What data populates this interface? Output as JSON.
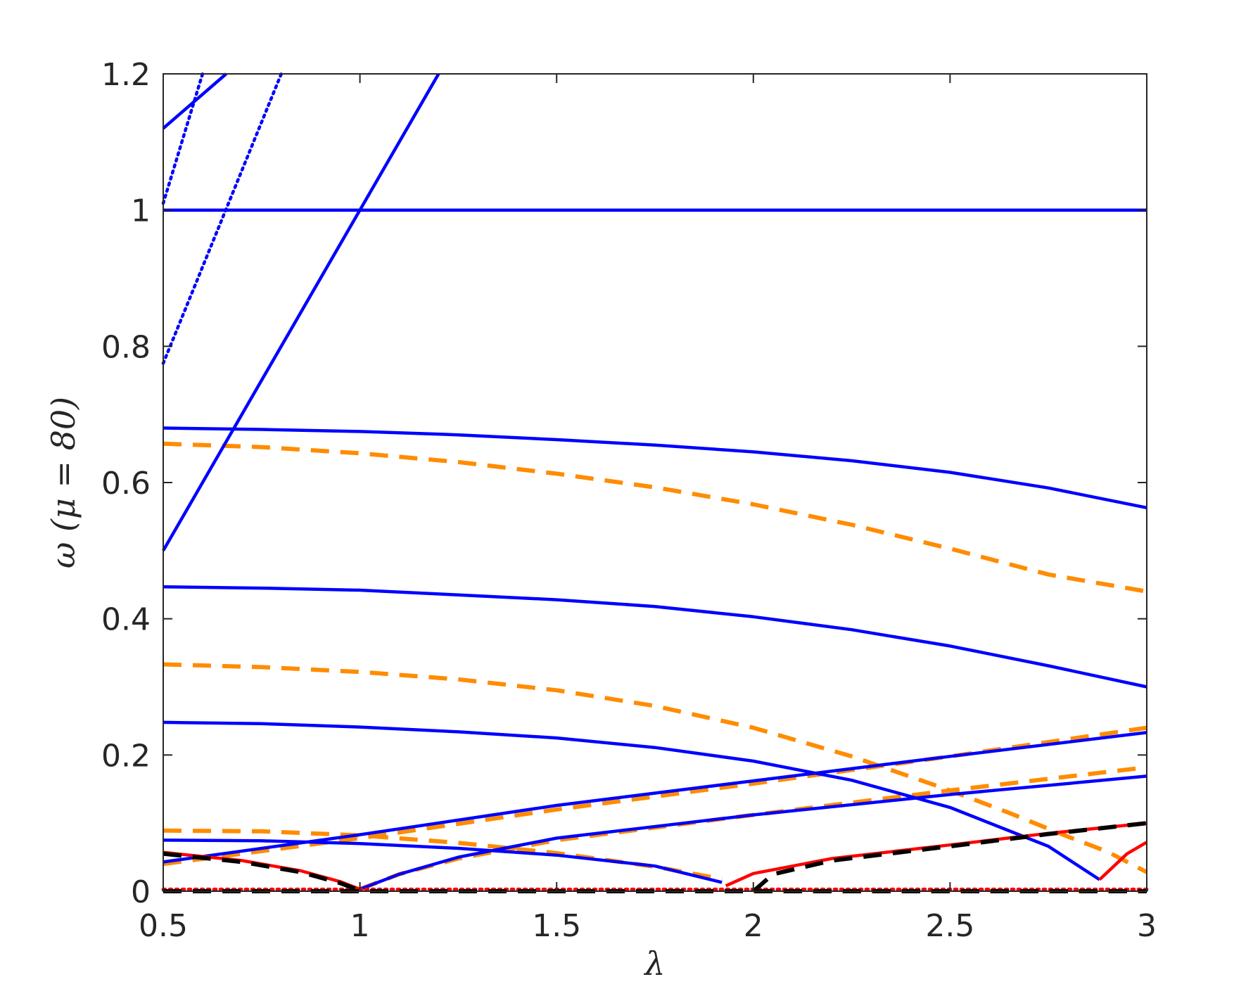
{
  "chart_data": {
    "type": "line",
    "title": "",
    "xlabel": "λ",
    "ylabel": "ω (μ = 80)",
    "xlim": [
      0.5,
      3
    ],
    "ylim": [
      0,
      1.2
    ],
    "xticks": [
      "0.5",
      "1",
      "1.5",
      "2",
      "2.5",
      "3"
    ],
    "yticks": [
      "0",
      "0.2",
      "0.4",
      "0.6",
      "0.8",
      "1",
      "1.2"
    ],
    "grid": false,
    "legend": "none",
    "colors": {
      "blue": "#0000ff",
      "orange": "#ff8c00",
      "red": "#ff0000",
      "black": "#000000",
      "axis": "#262626"
    },
    "series": [
      {
        "color": "blue",
        "style": "solid",
        "x": [
          0.5,
          1.0,
          1.5,
          2.0,
          2.5,
          3.0
        ],
        "y": [
          1.0,
          1.0,
          1.0,
          1.0,
          1.0,
          1.0
        ]
      },
      {
        "color": "blue",
        "style": "solid",
        "x": [
          0.5,
          0.75,
          1.0,
          1.25,
          1.5,
          1.75,
          2.0,
          2.25,
          2.5,
          2.75,
          3.0
        ],
        "y": [
          0.68,
          0.678,
          0.675,
          0.67,
          0.663,
          0.655,
          0.645,
          0.632,
          0.615,
          0.592,
          0.563
        ]
      },
      {
        "color": "blue",
        "style": "solid",
        "x": [
          0.5,
          0.75,
          1.0,
          1.25,
          1.5,
          1.75,
          2.0,
          2.25,
          2.5,
          2.75,
          3.0
        ],
        "y": [
          0.447,
          0.445,
          0.442,
          0.435,
          0.428,
          0.418,
          0.403,
          0.384,
          0.36,
          0.331,
          0.3
        ]
      },
      {
        "color": "blue",
        "style": "solid",
        "x": [
          0.5,
          0.75,
          1.0,
          1.25,
          1.5,
          1.75,
          2.0,
          2.25,
          2.5,
          2.75,
          2.88
        ],
        "y": [
          0.248,
          0.246,
          0.241,
          0.234,
          0.225,
          0.211,
          0.191,
          0.163,
          0.123,
          0.066,
          0.017
        ]
      },
      {
        "color": "blue",
        "style": "solid",
        "x": [
          0.5,
          0.75,
          1.0,
          1.25,
          1.5,
          1.75,
          1.92
        ],
        "y": [
          0.075,
          0.074,
          0.07,
          0.063,
          0.053,
          0.037,
          0.013
        ]
      },
      {
        "color": "blue",
        "style": "solid",
        "x": [
          0.5,
          1.0,
          1.5,
          2.0,
          2.5,
          3.0
        ],
        "y": [
          0.043,
          0.083,
          0.126,
          0.162,
          0.198,
          0.233
        ]
      },
      {
        "color": "blue",
        "style": "solid",
        "x": [
          1.0,
          1.1,
          1.25,
          1.5,
          2.0,
          2.5,
          3.0
        ],
        "y": [
          0.003,
          0.025,
          0.05,
          0.078,
          0.112,
          0.142,
          0.169
        ]
      },
      {
        "color": "blue",
        "style": "solid",
        "x": [
          0.5,
          1.2
        ],
        "y": [
          0.5,
          1.2
        ]
      },
      {
        "color": "blue",
        "style": "dotted",
        "x": [
          0.5,
          0.8
        ],
        "y": [
          0.775,
          1.2
        ]
      },
      {
        "color": "blue",
        "style": "dotted",
        "x": [
          0.5,
          0.6
        ],
        "y": [
          1.01,
          1.2
        ]
      },
      {
        "color": "blue",
        "style": "solid",
        "x": [
          0.5,
          0.66
        ],
        "y": [
          1.12,
          1.2
        ]
      },
      {
        "color": "blue",
        "style": "dotted",
        "x": [
          0.5,
          3.0
        ],
        "y": [
          0.002,
          0.002
        ]
      },
      {
        "color": "orange",
        "style": "dashed",
        "x": [
          0.5,
          0.75,
          1.0,
          1.25,
          1.5,
          1.75,
          2.0,
          2.25,
          2.5,
          2.75,
          3.0
        ],
        "y": [
          0.657,
          0.652,
          0.643,
          0.63,
          0.613,
          0.593,
          0.568,
          0.538,
          0.503,
          0.465,
          0.44
        ]
      },
      {
        "color": "orange",
        "style": "dashed",
        "x": [
          0.5,
          0.75,
          1.0,
          1.25,
          1.5,
          1.75,
          2.0,
          2.25,
          2.5,
          2.65,
          2.8,
          2.9,
          3.0
        ],
        "y": [
          0.333,
          0.329,
          0.322,
          0.311,
          0.295,
          0.272,
          0.24,
          0.198,
          0.148,
          0.115,
          0.08,
          0.058,
          0.028
        ]
      },
      {
        "color": "orange",
        "style": "dashed",
        "x": [
          0.5,
          0.75,
          1.0,
          1.25,
          1.5,
          1.75,
          1.92
        ],
        "y": [
          0.089,
          0.088,
          0.082,
          0.071,
          0.056,
          0.036,
          0.018
        ]
      },
      {
        "color": "orange",
        "style": "dashed",
        "x": [
          0.5,
          1.0,
          1.5,
          2.0,
          2.5,
          3.0
        ],
        "y": [
          0.04,
          0.078,
          0.12,
          0.158,
          0.198,
          0.24
        ]
      },
      {
        "color": "orange",
        "style": "dashed",
        "x": [
          1.0,
          1.1,
          1.25,
          1.5,
          2.0,
          2.5,
          3.0
        ],
        "y": [
          0.003,
          0.025,
          0.048,
          0.075,
          0.112,
          0.148,
          0.182
        ]
      },
      {
        "color": "orange",
        "style": "dashed",
        "x": [
          2.0,
          3.0
        ],
        "y": [
          0.0,
          0.0
        ]
      },
      {
        "color": "red",
        "style": "solid",
        "x": [
          0.5,
          0.7,
          0.85,
          0.95,
          1.0
        ],
        "y": [
          0.057,
          0.045,
          0.03,
          0.014,
          0.003
        ]
      },
      {
        "color": "red",
        "style": "solid",
        "x": [
          1.93,
          2.0,
          2.2,
          2.5,
          2.75,
          3.0
        ],
        "y": [
          0.008,
          0.026,
          0.048,
          0.068,
          0.085,
          0.1
        ]
      },
      {
        "color": "red",
        "style": "solid",
        "x": [
          2.88,
          2.95,
          3.0
        ],
        "y": [
          0.017,
          0.055,
          0.072
        ]
      },
      {
        "color": "red",
        "style": "dotted",
        "x": [
          0.5,
          3.0
        ],
        "y": [
          0.003,
          0.003
        ]
      },
      {
        "color": "black",
        "style": "dashed",
        "x": [
          0.5,
          0.7,
          0.85,
          0.95,
          1.0
        ],
        "y": [
          0.055,
          0.043,
          0.028,
          0.012,
          0.001
        ]
      },
      {
        "color": "black",
        "style": "dashed",
        "x": [
          2.0,
          2.05,
          2.2,
          2.5,
          2.75,
          3.0
        ],
        "y": [
          0.0,
          0.025,
          0.045,
          0.066,
          0.084,
          0.1
        ]
      },
      {
        "color": "black",
        "style": "dashed",
        "x": [
          0.5,
          3.0
        ],
        "y": [
          0.0,
          0.0
        ]
      }
    ]
  }
}
